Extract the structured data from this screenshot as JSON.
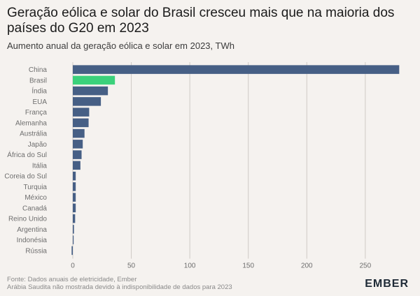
{
  "title": "Geração eólica e solar do Brasil cresceu mais que na maioria dos países do G20 em 2023",
  "subtitle": "Aumento anual da geração eólica e solar em 2023, TWh",
  "footer": {
    "line1": "Fonte: Dados anuais de eletricidade, Ember",
    "line2": "Arábia Saudita não mostrada devido à indisponibilidade de dados para 2023"
  },
  "logo": {
    "text": "EMBER"
  },
  "colors": {
    "bar_default": "#465f85",
    "bar_highlight": "#3bd17b",
    "grid": "#cfcac5",
    "axis_text": "#6e6e6e",
    "label_text": "#6e6e6e"
  },
  "chart_data": {
    "type": "bar",
    "orientation": "horizontal",
    "categories": [
      "China",
      "Brasil",
      "Índia",
      "EUA",
      "França",
      "Alemanha",
      "Austrália",
      "Japão",
      "África do Sul",
      "Itália",
      "Coreia do Sul",
      "Turquia",
      "México",
      "Canadá",
      "Reino Unido",
      "Argentina",
      "Indonésia",
      "Rússia"
    ],
    "values": [
      279,
      36,
      30,
      24,
      14,
      13.5,
      10,
      8.5,
      7.5,
      6.5,
      2.5,
      2.5,
      2.5,
      2.5,
      2,
      1,
      0.3,
      -1
    ],
    "highlight": "Brasil",
    "xlim": [
      0,
      280
    ],
    "xticks": [
      0,
      50,
      100,
      150,
      200,
      250
    ],
    "xlabel": "",
    "ylabel": "",
    "grid": "vertical"
  }
}
